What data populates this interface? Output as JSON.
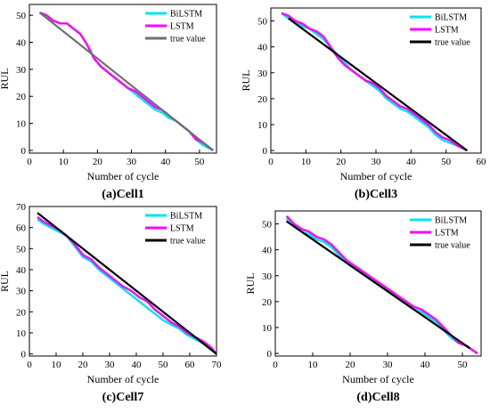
{
  "chart_data": [
    {
      "type": "line",
      "caption": "(a)Cell1",
      "xlabel": "Number of cycle",
      "ylabel": "RUL",
      "xlim": [
        0,
        55
      ],
      "ylim": [
        -1,
        54
      ],
      "xticks": [
        0,
        10,
        20,
        30,
        40,
        50
      ],
      "yticks": [
        0,
        10,
        20,
        30,
        40,
        50
      ],
      "legend": "top-right",
      "series": [
        {
          "name": "BiLSTM",
          "color": "#00e5ee",
          "x": [
            3,
            5,
            7,
            9,
            11,
            13,
            15,
            17,
            19,
            21,
            23,
            25,
            27,
            29,
            31,
            33,
            35,
            37,
            39,
            41,
            43,
            45,
            47,
            49,
            51,
            54
          ],
          "y": [
            51,
            50,
            48,
            47,
            47,
            45,
            43,
            39,
            34,
            31,
            29,
            27,
            25,
            23,
            21,
            19,
            17,
            15,
            14,
            12,
            11,
            9,
            7,
            4,
            2,
            0
          ]
        },
        {
          "name": "LSTM",
          "color": "#ff00ff",
          "x": [
            3,
            5,
            7,
            9,
            11,
            13,
            15,
            17,
            19,
            21,
            23,
            25,
            27,
            29,
            31,
            33,
            35,
            37,
            39,
            41,
            43,
            45,
            47,
            49,
            51,
            54
          ],
          "y": [
            51,
            50,
            48,
            47,
            47,
            45,
            43,
            39,
            34,
            31,
            29,
            27,
            25,
            23,
            22,
            20,
            18,
            16,
            15,
            13,
            11,
            9,
            7,
            4,
            3,
            0
          ]
        },
        {
          "name": "true value",
          "color": "#707070",
          "x": [
            3,
            54
          ],
          "y": [
            51,
            0
          ]
        }
      ]
    },
    {
      "type": "line",
      "caption": "(b)Cell3",
      "xlabel": "Number of cycle",
      "ylabel": "RUL",
      "xlim": [
        0,
        60
      ],
      "ylim": [
        -1,
        55
      ],
      "xticks": [
        0,
        10,
        20,
        30,
        40,
        50,
        60
      ],
      "yticks": [
        0,
        10,
        20,
        30,
        40,
        50
      ],
      "legend": "top-right",
      "series": [
        {
          "name": "BiLSTM",
          "color": "#00e5ee",
          "x": [
            3,
            5,
            7,
            9,
            11,
            13,
            15,
            17,
            19,
            21,
            23,
            25,
            27,
            29,
            31,
            33,
            35,
            37,
            39,
            41,
            43,
            45,
            47,
            49,
            51,
            53,
            56
          ],
          "y": [
            53,
            51,
            50,
            48,
            47,
            45,
            43,
            40,
            37,
            34,
            31,
            29,
            27,
            25,
            23,
            20,
            18,
            16,
            15,
            13,
            11,
            9,
            6,
            4,
            3,
            2,
            0
          ]
        },
        {
          "name": "LSTM",
          "color": "#ff00ff",
          "x": [
            3,
            5,
            7,
            9,
            11,
            13,
            15,
            17,
            19,
            21,
            23,
            25,
            27,
            29,
            31,
            33,
            35,
            37,
            39,
            41,
            43,
            45,
            47,
            49,
            51,
            53,
            56
          ],
          "y": [
            53,
            52,
            50,
            49,
            47,
            46,
            44,
            40,
            36,
            33,
            31,
            29,
            27,
            26,
            24,
            21,
            19,
            17,
            16,
            14,
            12,
            10,
            7,
            5,
            4,
            2,
            0
          ]
        },
        {
          "name": "true value",
          "color": "#000000",
          "x": [
            5,
            56
          ],
          "y": [
            51,
            0
          ]
        }
      ]
    },
    {
      "type": "line",
      "caption": "(c)Cell7",
      "xlabel": "Number of cycle",
      "ylabel": "RUL",
      "xlim": [
        0,
        70
      ],
      "ylim": [
        -1,
        70
      ],
      "xticks": [
        0,
        10,
        20,
        30,
        40,
        50,
        60,
        70
      ],
      "yticks": [
        0,
        10,
        20,
        30,
        40,
        50,
        60,
        70
      ],
      "legend": "top-right",
      "series": [
        {
          "name": "BiLSTM",
          "color": "#00e5ee",
          "x": [
            3,
            5,
            8,
            11,
            14,
            17,
            20,
            23,
            26,
            29,
            32,
            35,
            38,
            41,
            44,
            47,
            50,
            53,
            56,
            59,
            62,
            65,
            68,
            70
          ],
          "y": [
            64,
            62,
            60,
            58,
            56,
            51,
            46,
            44,
            40,
            37,
            34,
            31,
            28,
            25,
            22,
            19,
            16,
            14,
            12,
            9,
            7,
            5,
            2,
            0
          ]
        },
        {
          "name": "LSTM",
          "color": "#ff00ff",
          "x": [
            3,
            5,
            8,
            11,
            14,
            17,
            20,
            23,
            26,
            29,
            32,
            35,
            38,
            41,
            44,
            47,
            50,
            53,
            56,
            59,
            62,
            65,
            68,
            70
          ],
          "y": [
            65,
            63,
            61,
            59,
            56,
            52,
            47,
            45,
            41,
            38,
            35,
            32,
            30,
            27,
            25,
            21,
            18,
            15,
            13,
            10,
            8,
            6,
            3,
            0
          ]
        },
        {
          "name": "true value",
          "color": "#000000",
          "x": [
            3,
            70
          ],
          "y": [
            67,
            0
          ]
        }
      ]
    },
    {
      "type": "line",
      "caption": "(d)Cell8",
      "xlabel": "Number of cycle",
      "ylabel": "RUL",
      "xlim": [
        0,
        55
      ],
      "ylim": [
        -1,
        55
      ],
      "xticks": [
        0,
        10,
        20,
        30,
        40,
        50
      ],
      "yticks": [
        0,
        10,
        20,
        30,
        40,
        50
      ],
      "legend": "top-right",
      "series": [
        {
          "name": "BiLSTM",
          "color": "#00e5ee",
          "x": [
            3,
            5,
            7,
            9,
            11,
            13,
            15,
            17,
            19,
            21,
            23,
            25,
            27,
            29,
            31,
            33,
            35,
            37,
            39,
            41,
            43,
            45,
            47,
            49,
            51,
            54
          ],
          "y": [
            52,
            49,
            47,
            46,
            44,
            43,
            41,
            38,
            35,
            33,
            31,
            29,
            27,
            25,
            23,
            21,
            19,
            17,
            16,
            14,
            12,
            9,
            6,
            4,
            3,
            0
          ]
        },
        {
          "name": "LSTM",
          "color": "#ff00ff",
          "x": [
            3,
            5,
            7,
            9,
            11,
            13,
            15,
            17,
            19,
            21,
            23,
            25,
            27,
            29,
            31,
            33,
            35,
            37,
            39,
            41,
            43,
            45,
            47,
            49,
            51,
            54
          ],
          "y": [
            53,
            50,
            48,
            47,
            45,
            44,
            42,
            39,
            36,
            34,
            32,
            30,
            28,
            26,
            24,
            22,
            20,
            18,
            17,
            15,
            13,
            10,
            7,
            4,
            3,
            0
          ]
        },
        {
          "name": "true value",
          "color": "#000000",
          "x": [
            3,
            52
          ],
          "y": [
            51,
            2
          ]
        }
      ]
    }
  ]
}
